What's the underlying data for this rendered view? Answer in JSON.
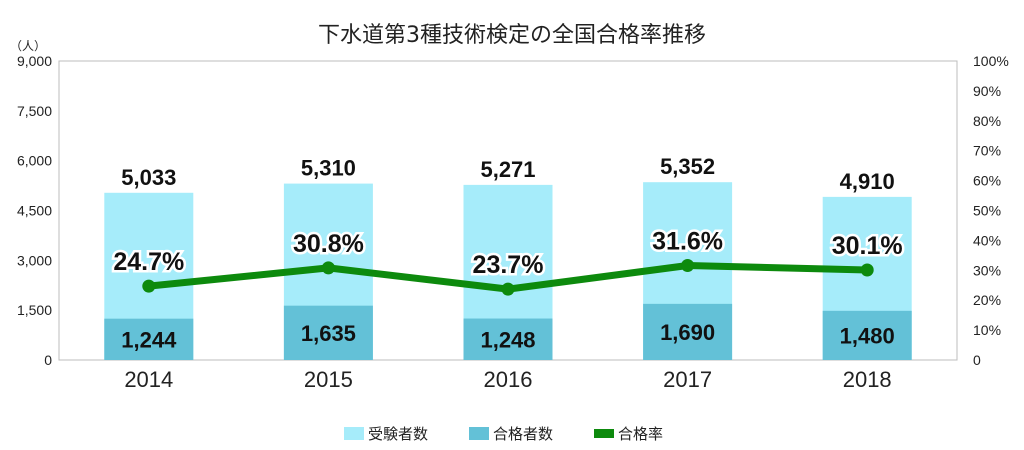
{
  "chart_data": {
    "type": "bar",
    "title": "下水道第3種技術検定の全国合格率推移",
    "y_unit": "（人）",
    "categories": [
      "2014",
      "2015",
      "2016",
      "2017",
      "2018"
    ],
    "series": [
      {
        "name": "受験者数",
        "kind": "bar",
        "axis": "left",
        "values": [
          5033,
          5310,
          5271,
          5352,
          4910
        ],
        "labels": [
          "5,033",
          "5,310",
          "5,271",
          "5,352",
          "4,910"
        ],
        "color": "#a6ecfa"
      },
      {
        "name": "合格者数",
        "kind": "bar",
        "axis": "left",
        "values": [
          1244,
          1635,
          1248,
          1690,
          1480
        ],
        "labels": [
          "1,244",
          "1,635",
          "1,248",
          "1,690",
          "1,480"
        ],
        "color": "#63c1d7"
      },
      {
        "name": "合格率",
        "kind": "line",
        "axis": "right",
        "values": [
          24.7,
          30.8,
          23.7,
          31.6,
          30.1
        ],
        "labels": [
          "24.7%",
          "30.8%",
          "23.7%",
          "31.6%",
          "30.1%"
        ],
        "color": "#0d8a0d"
      }
    ],
    "left_axis": {
      "min": 0,
      "max": 9000,
      "ticks": [
        "0",
        "1,500",
        "3,000",
        "4,500",
        "6,000",
        "7,500",
        "9,000"
      ]
    },
    "right_axis": {
      "min": 0,
      "max": 100,
      "ticks": [
        "0",
        "10%",
        "20%",
        "30%",
        "40%",
        "50%",
        "60%",
        "70%",
        "80%",
        "90%",
        "100%"
      ]
    },
    "grid": false,
    "legend_position": "bottom-center"
  }
}
